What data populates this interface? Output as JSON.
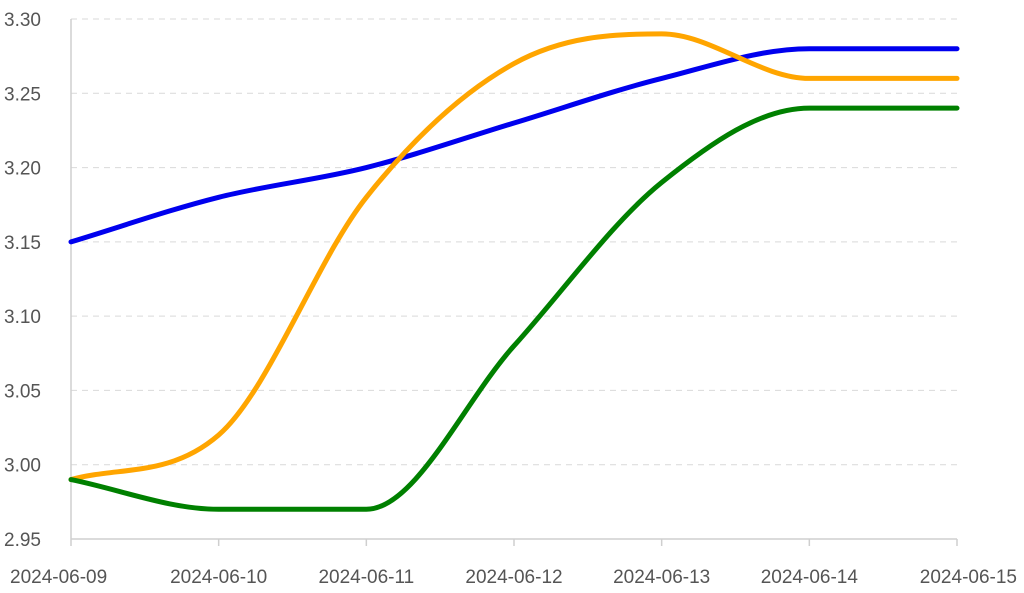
{
  "chart_data": {
    "type": "line",
    "title": "",
    "xlabel": "",
    "ylabel": "",
    "x": [
      "2024-06-09",
      "2024-06-10",
      "2024-06-11",
      "2024-06-12",
      "2024-06-13",
      "2024-06-14",
      "2024-06-15"
    ],
    "ylim": [
      2.95,
      3.3
    ],
    "yticks": [
      "2.95",
      "3.00",
      "3.05",
      "3.10",
      "3.15",
      "3.20",
      "3.25",
      "3.30"
    ],
    "grid": true,
    "legend": "none",
    "series": [
      {
        "color": "#0000ee",
        "values": [
          3.15,
          3.18,
          3.2,
          3.23,
          3.26,
          3.28,
          3.28
        ]
      },
      {
        "color": "#ffa500",
        "values": [
          2.99,
          3.02,
          3.18,
          3.27,
          3.29,
          3.26,
          3.26
        ]
      },
      {
        "color": "#008000",
        "values": [
          2.99,
          2.97,
          2.97,
          3.08,
          3.19,
          3.24,
          3.24
        ]
      }
    ]
  }
}
